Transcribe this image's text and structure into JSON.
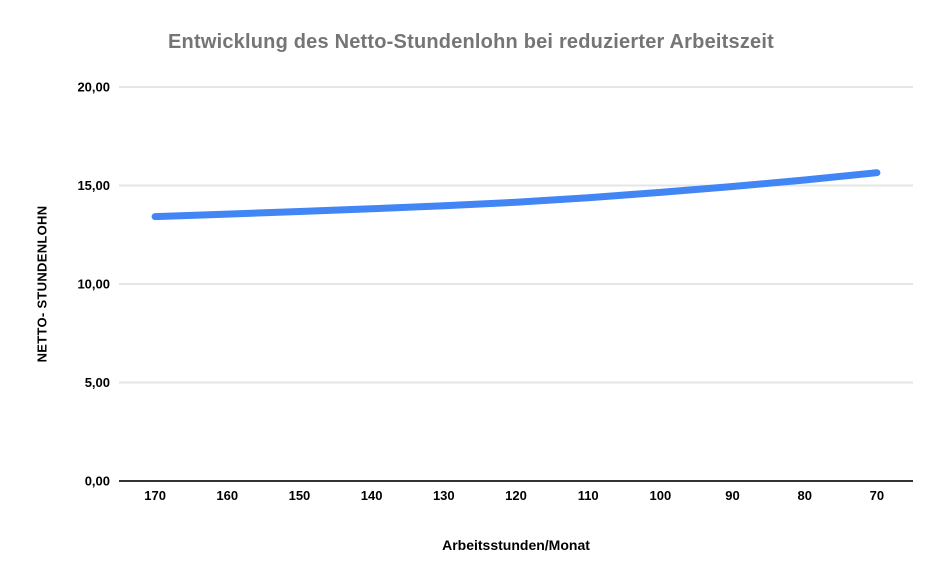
{
  "chart_data": {
    "type": "line",
    "title": "Entwicklung des Netto-Stundenlohn bei reduzierter Arbeitszeit",
    "xlabel": "Arbeitsstunden/Monat",
    "ylabel": "NETTO- STUNDENLOHN",
    "categories": [
      "170",
      "160",
      "150",
      "140",
      "130",
      "120",
      "110",
      "100",
      "90",
      "80",
      "70"
    ],
    "values": [
      13.42,
      13.55,
      13.68,
      13.82,
      13.97,
      14.15,
      14.38,
      14.65,
      14.95,
      15.28,
      15.65
    ],
    "ylim": [
      0,
      20
    ],
    "yticks": [
      {
        "value": 0,
        "label": "0,00"
      },
      {
        "value": 5,
        "label": "5,00"
      },
      {
        "value": 10,
        "label": "10,00"
      },
      {
        "value": 15,
        "label": "15,00"
      },
      {
        "value": 20,
        "label": "20,00"
      }
    ],
    "grid": true,
    "legend": "none",
    "colors": {
      "line": "#4285F4",
      "title_text": "#757575",
      "axis_text": "#000000",
      "gridline": "#e6e6e6",
      "baseline": "#333333"
    }
  }
}
